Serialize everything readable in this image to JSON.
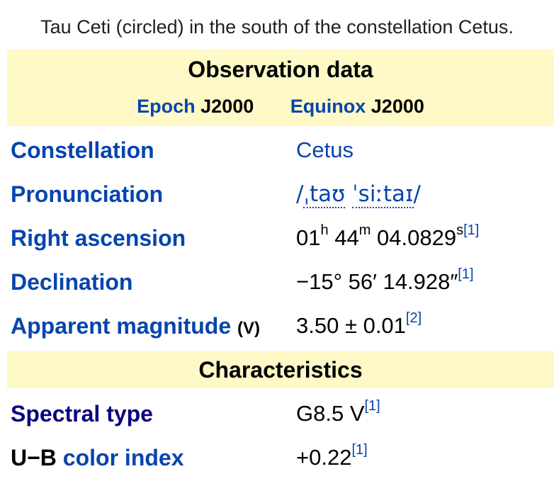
{
  "caption": "Tau Ceti (circled) in the south of the constellation Cetus.",
  "observation": {
    "title": "Observation data",
    "epoch_label": "Epoch",
    "epoch_value": "J2000",
    "equinox_label": "Equinox",
    "equinox_value": "J2000",
    "rows": [
      {
        "label": "Constellation",
        "value": "Cetus"
      },
      {
        "label": "Pronunciation",
        "value_open": "/",
        "value_part1": "ˌtaʊ",
        "value_part2": "ˈsiːtaɪ",
        "value_close": "/"
      },
      {
        "label": "Right ascension",
        "h": "01",
        "h_unit": "h",
        "m": "44",
        "m_unit": "m",
        "s": "04.0829",
        "s_unit": "s",
        "ref": "[1]"
      },
      {
        "label": "Declination",
        "value": "−15° 56′ 14.928″",
        "ref": "[1]"
      },
      {
        "label": "Apparent magnitude",
        "band": "(V)",
        "value": "3.50 ± 0.01",
        "ref": "[2]"
      }
    ]
  },
  "characteristics": {
    "title": "Characteristics",
    "rows": [
      {
        "label": "Spectral type",
        "value": "G8.5 V",
        "ref": "[1]"
      },
      {
        "label_prefix": "U−B",
        "label": "color index",
        "value": "+0.22",
        "ref": "[1]"
      }
    ]
  }
}
